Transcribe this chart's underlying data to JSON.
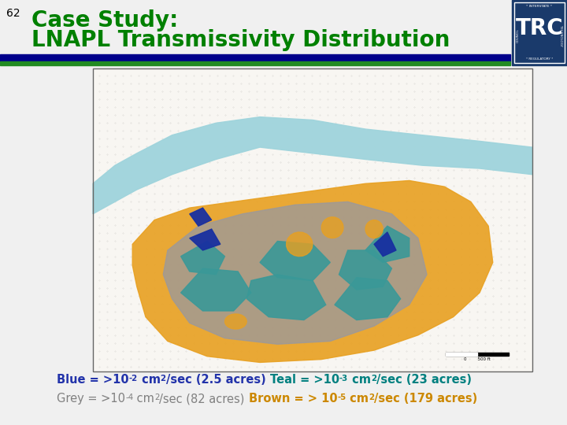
{
  "slide_number": "62",
  "title_line1": "Case Study:",
  "title_line2": "LNAPL Transmissivity Distribution",
  "title_color": "#008000",
  "slide_num_color": "#000000",
  "bg_color": "#f0f0f0",
  "divider_navy": "#00008B",
  "divider_green": "#228B22",
  "caption_line1_parts": [
    {
      "text": "Blue = >10",
      "color": "#2233AA",
      "bold": true,
      "sup": false
    },
    {
      "text": "-2",
      "color": "#2233AA",
      "bold": true,
      "sup": true
    },
    {
      "text": " cm",
      "color": "#2233AA",
      "bold": true,
      "sup": false
    },
    {
      "text": "2",
      "color": "#2233AA",
      "bold": true,
      "sup": true
    },
    {
      "text": "/sec (2.5 acres) ",
      "color": "#2233AA",
      "bold": true,
      "sup": false
    },
    {
      "text": "Teal = >10",
      "color": "#008080",
      "bold": true,
      "sup": false
    },
    {
      "text": "-3",
      "color": "#008080",
      "bold": true,
      "sup": true
    },
    {
      "text": " cm",
      "color": "#008080",
      "bold": true,
      "sup": false
    },
    {
      "text": "2",
      "color": "#008080",
      "bold": true,
      "sup": true
    },
    {
      "text": "/sec (23 acres)",
      "color": "#008080",
      "bold": true,
      "sup": false
    }
  ],
  "caption_line2_parts": [
    {
      "text": "Grey = >10",
      "color": "#808080",
      "bold": false,
      "sup": false
    },
    {
      "text": "-4",
      "color": "#808080",
      "bold": false,
      "sup": true
    },
    {
      "text": " cm",
      "color": "#808080",
      "bold": false,
      "sup": false
    },
    {
      "text": "2",
      "color": "#808080",
      "bold": false,
      "sup": true
    },
    {
      "text": "/sec (82 acres) ",
      "color": "#808080",
      "bold": false,
      "sup": false
    },
    {
      "text": "Brown = > 10",
      "color": "#CC8800",
      "bold": true,
      "sup": false
    },
    {
      "text": "-5",
      "color": "#CC8800",
      "bold": true,
      "sup": true
    },
    {
      "text": " cm",
      "color": "#CC8800",
      "bold": true,
      "sup": false
    },
    {
      "text": "2",
      "color": "#CC8800",
      "bold": true,
      "sup": true
    },
    {
      "text": "/sec (179 acres)",
      "color": "#CC8800",
      "bold": true,
      "sup": false
    }
  ],
  "map_bg": "#f5f3ef",
  "river_color": "#9FD4DC",
  "orange_color": "#E8A020",
  "grey_color": "#9898A0",
  "teal_color": "#3A9898",
  "blue_color": "#1830A0",
  "logo_bg": "#1a3a6b",
  "logo_border": "#1a3a6b"
}
